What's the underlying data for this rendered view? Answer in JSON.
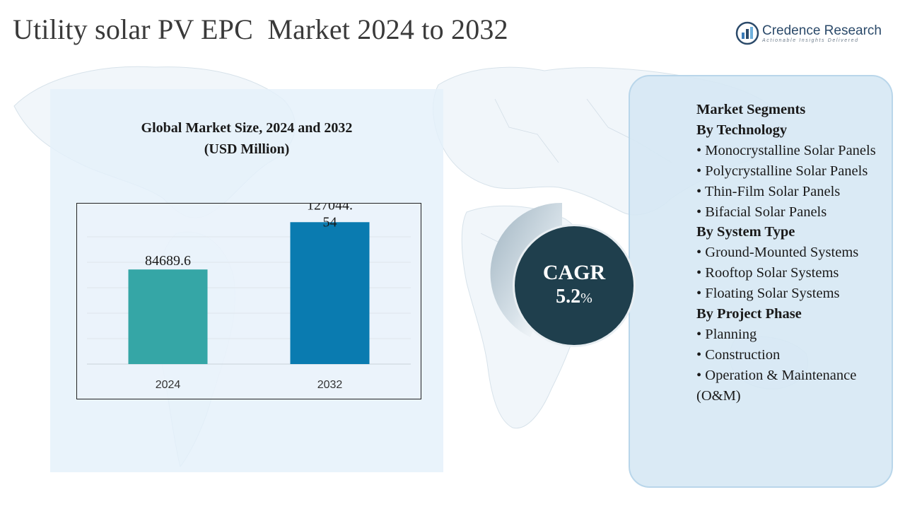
{
  "header": {
    "title": "Utility solar PV EPC  Market 2024 to 2032"
  },
  "brand": {
    "name": "Credence Research",
    "tagline": "Actionable Insights Delivered",
    "logo_icon": "credence-logo-icon"
  },
  "chart_data": {
    "type": "bar",
    "title": "Global Market Size, 2024 and 2032",
    "subtitle": "(USD Million)",
    "categories": [
      "2024",
      "2032"
    ],
    "values": [
      84689.6,
      127044.54
    ],
    "data_labels": [
      "84689.6",
      "127044.54"
    ],
    "colors": [
      "#35a6a6",
      "#0a7bb0"
    ],
    "ylim": [
      0,
      150000
    ],
    "grid": true,
    "xlabel": "",
    "ylabel": ""
  },
  "cagr": {
    "label": "CAGR",
    "value": "5.2",
    "unit": "%"
  },
  "segments": {
    "heading": "Market Segments",
    "groups": [
      {
        "title": "By Technology",
        "items": [
          "•  Monocrystalline Solar Panels",
          "•   Polycrystalline Solar Panels",
          "•  Thin-Film Solar Panels",
          "•  Bifacial Solar Panels"
        ]
      },
      {
        "title": "By System Type",
        "items": [
          "•  Ground-Mounted Systems",
          "•  Rooftop Solar Systems",
          "•  Floating Solar Systems"
        ]
      },
      {
        "title": "By Project Phase",
        "items": [
          "•  Planning",
          "•  Construction",
          "•  Operation & Maintenance (O&M)"
        ]
      }
    ]
  }
}
